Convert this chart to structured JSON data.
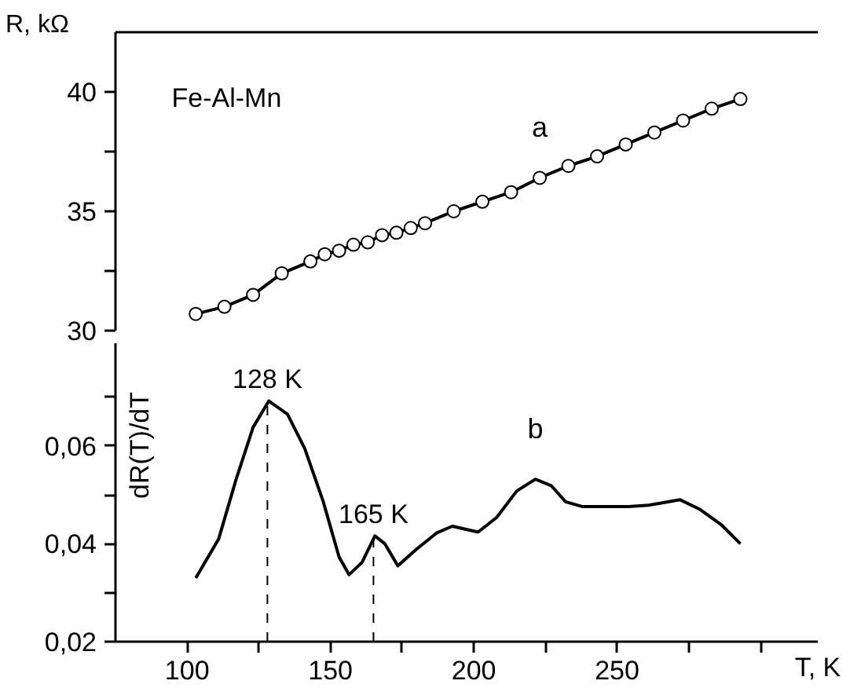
{
  "chart_data": [
    {
      "type": "line",
      "ylabel": "R, kΩ",
      "annotations": [
        "Fe-Al-Mn"
      ],
      "marker": "circle",
      "line_style": "solid",
      "grid": false,
      "tick_labels": "y",
      "xlim": [
        75,
        320
      ],
      "ylim": [
        30,
        42.5
      ],
      "yticks": [
        30,
        {
          "value": 32.5,
          "label": null
        },
        35,
        {
          "value": 37.5,
          "label": null
        },
        40
      ],
      "series": [
        {
          "name": "a",
          "color": "#000000",
          "x": [
            103,
            113,
            123,
            133,
            143,
            148,
            153,
            158,
            163,
            168,
            173,
            178,
            183,
            193,
            203,
            213,
            223,
            233,
            243,
            253,
            263,
            273,
            283,
            293
          ],
          "values": [
            30.7,
            31.0,
            31.5,
            32.4,
            32.9,
            33.2,
            33.35,
            33.6,
            33.7,
            34.0,
            34.1,
            34.3,
            34.5,
            35.0,
            35.4,
            35.8,
            36.4,
            36.9,
            37.3,
            37.8,
            38.3,
            38.8,
            39.3,
            39.7
          ]
        }
      ]
    },
    {
      "type": "line",
      "xlabel": "T, K",
      "ylabel": "dR(T)/dT",
      "grid": false,
      "marker": "none",
      "line_style": "solid",
      "xlim": [
        75,
        320
      ],
      "ylim": [
        0.02,
        0.081
      ],
      "xticks": [
        100,
        {
          "value": 125,
          "label": null
        },
        150,
        {
          "value": 175,
          "label": null
        },
        200,
        {
          "value": 225,
          "label": null
        },
        250,
        {
          "value": 275,
          "label": null
        },
        {
          "value": 300,
          "label": null
        }
      ],
      "yticks": [
        {
          "value": 0.02,
          "label": "0,02"
        },
        {
          "value": 0.03,
          "label": null
        },
        {
          "value": 0.04,
          "label": "0,04"
        },
        {
          "value": 0.05,
          "label": null
        },
        {
          "value": 0.06,
          "label": "0,06"
        },
        {
          "value": 0.07,
          "label": null
        }
      ],
      "ref_lines": [
        {
          "axis": "x",
          "value": 128,
          "label": "128 K",
          "line_style": "dashed"
        },
        {
          "axis": "x",
          "value": 165,
          "label": "165 K",
          "line_style": "dashed"
        }
      ],
      "series": [
        {
          "name": "b",
          "color": "#000000",
          "x": [
            103,
            111,
            117,
            123,
            128.5,
            135,
            141,
            147.5,
            153,
            156.5,
            161,
            165.5,
            169,
            173.5,
            180,
            187,
            192.5,
            197,
            201.5,
            208,
            215,
            221.5,
            227,
            232,
            238,
            254,
            261,
            272,
            279,
            286.5,
            293
          ],
          "values": [
            0.033,
            0.041,
            0.053,
            0.0638,
            0.0692,
            0.0665,
            0.0595,
            0.0486,
            0.0373,
            0.0337,
            0.0362,
            0.0416,
            0.04,
            0.0355,
            0.0389,
            0.0422,
            0.0436,
            0.043,
            0.0424,
            0.0454,
            0.0508,
            0.0532,
            0.0519,
            0.0486,
            0.0476,
            0.0476,
            0.0479,
            0.049,
            0.047,
            0.0438,
            0.04
          ]
        }
      ]
    }
  ]
}
